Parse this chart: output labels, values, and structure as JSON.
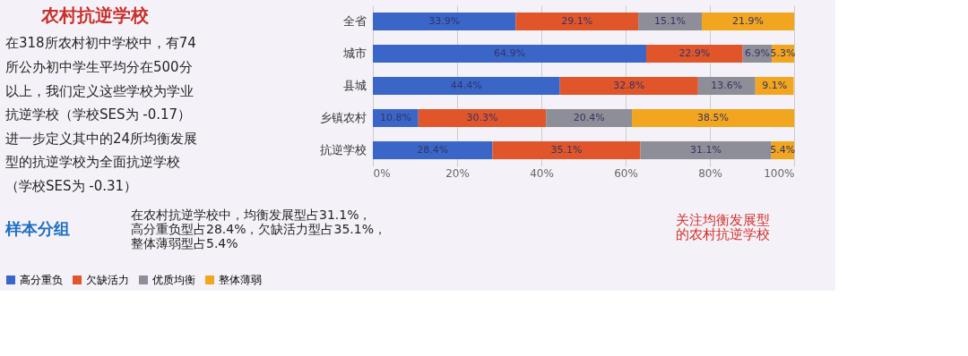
{
  "chart_data": {
    "type": "bar",
    "orientation": "horizontal",
    "stacked": true,
    "title": "农村抗逆学校",
    "categories": [
      "全省",
      "城市",
      "县城",
      "乡镇农村",
      "抗逆学校"
    ],
    "series": [
      {
        "name": "高分重负",
        "color": "#3a66c8",
        "values": [
          33.9,
          64.9,
          44.4,
          10.8,
          28.4
        ],
        "value_labels": [
          "33.9%",
          "64.9%",
          "44.4%",
          "10.8%",
          "28.4%"
        ]
      },
      {
        "name": "欠缺活力",
        "color": "#e0562a",
        "values": [
          29.1,
          22.9,
          32.8,
          30.3,
          35.1
        ],
        "value_labels": [
          "29.1%",
          "22.9%",
          "32.8%",
          "30.3%",
          "35.1%"
        ]
      },
      {
        "name": "优质均衡",
        "color": "#8e8e98",
        "values": [
          15.1,
          6.9,
          13.6,
          20.4,
          31.1
        ],
        "value_labels": [
          "15.1%",
          "6.9%",
          "13.6%",
          "20.4%",
          "31.1%"
        ]
      },
      {
        "name": "整体薄弱",
        "color": "#f2a51e",
        "values": [
          21.9,
          5.3,
          9.1,
          38.5,
          5.4
        ],
        "value_labels": [
          "21.9%",
          "5.3%",
          "9.1%",
          "38.5%",
          "5.4%"
        ]
      }
    ],
    "xlim": [
      0,
      100
    ],
    "xticks": [
      {
        "value": 0,
        "label": "0%"
      },
      {
        "value": 20,
        "label": "20%"
      },
      {
        "value": 40,
        "label": "40%"
      },
      {
        "value": 60,
        "label": "60%"
      },
      {
        "value": 80,
        "label": "80%"
      },
      {
        "value": 100,
        "label": "100%"
      }
    ],
    "grid": "x",
    "legend": "bottom",
    "annotations": [
      "在318所农村初中学校中，有74",
      "所公办初中学生平均分在500分",
      "以上，我们定义这些学校为学业",
      "抗逆学校（学校SES为 -0.17）",
      "进一步定义其中的24所均衡发展",
      "型的抗逆学校为全面抗逆学校",
      "（学校SES为 -0.31）",
      "在农村抗逆学校中，均衡发展型占31.1%，",
      "高分重负型占28.4%，欠缺活力型占35.1%，",
      "整体薄弱型占5.4%",
      "关注均衡发展型的农村抗逆学校",
      "样本分组"
    ]
  }
}
